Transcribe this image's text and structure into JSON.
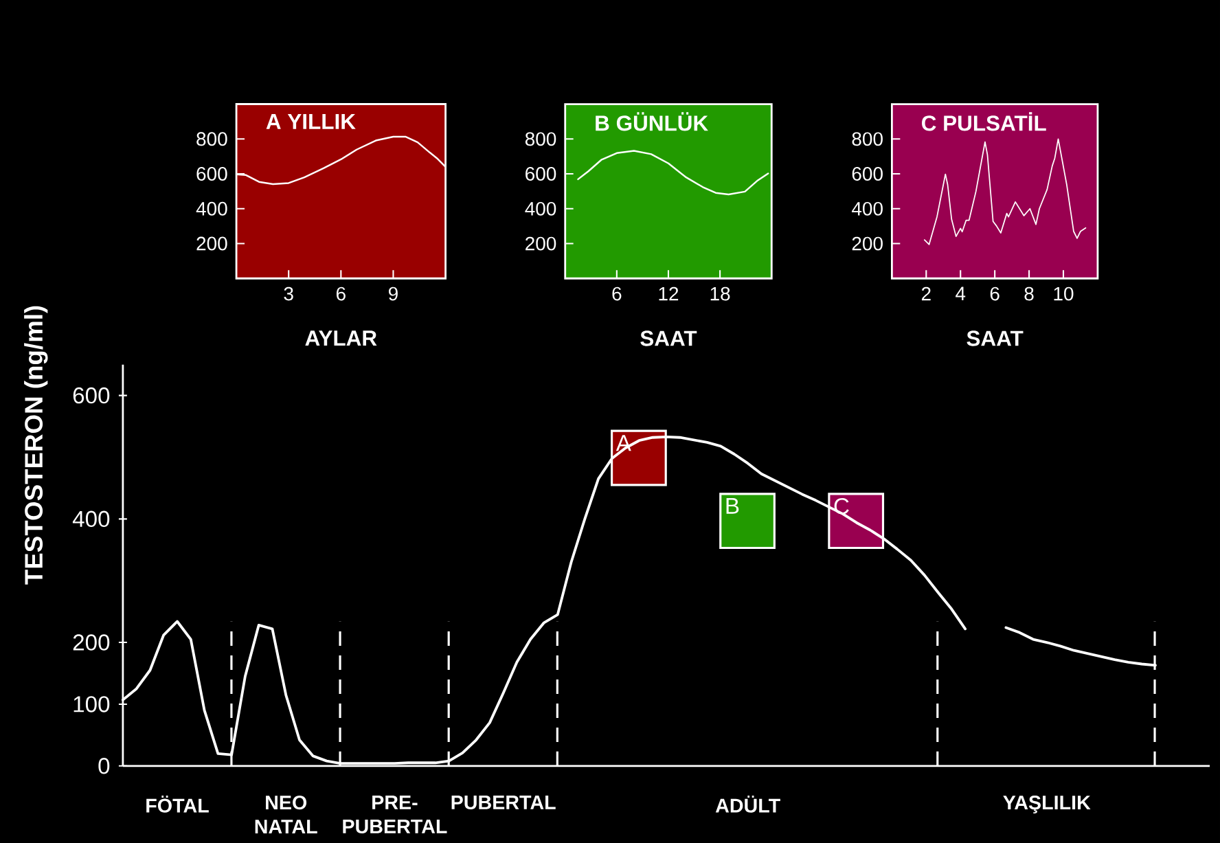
{
  "chart_data": [
    {
      "type": "line",
      "title": "A YILLIK",
      "xlabel": "AYLAR",
      "xlim": [
        0,
        12
      ],
      "ylim": [
        0,
        1000
      ],
      "xticks": [
        3,
        6,
        9
      ],
      "yticks": [
        200,
        400,
        600,
        800
      ],
      "bands": [
        {
          "axis": "x",
          "from": 0,
          "to": 12,
          "color": "#990000"
        }
      ],
      "series": [
        {
          "color": "#ffffff",
          "x": [
            0,
            0.55,
            1.3,
            2.1,
            3,
            3.9,
            5,
            6,
            6.9,
            8,
            9,
            9.7,
            10.4,
            11.1,
            11.5,
            12
          ],
          "values": [
            597,
            593,
            554,
            541,
            547,
            580,
            632,
            683,
            739,
            791,
            813,
            813,
            781,
            722,
            690,
            640
          ]
        }
      ]
    },
    {
      "type": "line",
      "title": "B GÜNLÜK",
      "xlabel": "SAAT",
      "xlim": [
        0,
        24
      ],
      "ylim": [
        0,
        1000
      ],
      "xticks": [
        6,
        12,
        18
      ],
      "yticks": [
        200,
        400,
        600,
        800
      ],
      "bands": [
        {
          "axis": "x",
          "from": 0,
          "to": 24,
          "color": "#229a00"
        }
      ],
      "series": [
        {
          "color": "#ffffff",
          "x": [
            1.5,
            2.7,
            4.2,
            6,
            8,
            10,
            12,
            14,
            16,
            17.5,
            19,
            20.9,
            22.4,
            23.6
          ],
          "values": [
            569,
            615,
            680,
            719,
            732,
            713,
            660,
            582,
            524,
            491,
            482,
            498,
            563,
            602
          ]
        }
      ]
    },
    {
      "type": "line",
      "title": "C PULSATİL",
      "xlabel": "SAAT",
      "xlim": [
        0,
        12
      ],
      "ylim": [
        0,
        1000
      ],
      "xticks": [
        2,
        4,
        6,
        8,
        10
      ],
      "yticks": [
        200,
        400,
        600,
        800
      ],
      "bands": [
        {
          "axis": "x",
          "from": 0,
          "to": 12,
          "color": "#990050"
        }
      ],
      "series": [
        {
          "color": "#ffffff",
          "x": [
            1.9,
            2.17,
            2.63,
            3.12,
            3.25,
            3.48,
            3.74,
            4,
            4.1,
            4.33,
            4.5,
            4.9,
            5.43,
            5.57,
            5.9,
            6.1,
            6.35,
            6.7,
            6.8,
            7.2,
            7.7,
            8.05,
            8.4,
            8.6,
            9.05,
            9.35,
            9.5,
            9.7,
            10.2,
            10.6,
            10.8,
            11,
            11.3
          ],
          "values": [
            221,
            195,
            354,
            598,
            538,
            340,
            241,
            287,
            268,
            334,
            334,
            499,
            783,
            710,
            327,
            301,
            261,
            373,
            353,
            439,
            360,
            400,
            310,
            400,
            510,
            645,
            690,
            800,
            535,
            270,
            230,
            270,
            290
          ]
        }
      ]
    },
    {
      "type": "line",
      "ylabel": "TESTOSTERON (ng/ml)",
      "ylim": [
        0,
        650
      ],
      "yticks": [
        0,
        100,
        200,
        400,
        600
      ],
      "categories": [
        null,
        null,
        null,
        null,
        "FÖTAL",
        null,
        null,
        null,
        null,
        null,
        null,
        null,
        "NEO NATAL",
        null,
        null,
        null,
        null,
        null,
        null,
        null,
        "PRE-PUBERTAL",
        null,
        null,
        null,
        null,
        null,
        null,
        null,
        "PUBERTAL",
        null,
        null,
        null,
        null,
        null,
        null,
        null,
        null,
        null,
        null,
        null,
        null,
        null,
        null,
        null,
        null,
        null,
        "ADÜLT",
        null,
        null,
        null,
        null,
        null,
        null,
        null,
        null,
        null,
        null,
        null,
        null,
        null,
        null,
        null,
        null,
        null,
        null,
        null,
        null,
        null,
        "YAŞLILIK",
        null,
        null,
        null,
        null,
        null,
        null,
        null,
        null
      ],
      "series": [
        {
          "color": "#ffffff",
          "values": [
            107,
            125,
            155,
            212,
            234,
            205,
            90,
            20,
            18,
            145,
            228,
            222,
            115,
            42,
            16,
            8,
            4,
            4,
            4,
            4,
            4,
            5,
            5,
            5,
            8,
            21,
            42,
            70,
            118,
            168,
            205,
            232,
            245,
            330,
            400,
            465,
            498,
            515,
            527,
            532,
            533,
            532,
            528,
            524,
            518,
            505,
            490,
            473,
            462,
            451,
            440,
            430,
            419,
            408,
            394,
            382,
            368,
            351,
            333,
            309,
            281,
            254,
            222,
            null,
            null,
            224,
            216,
            205,
            200,
            194,
            187,
            182,
            177,
            172,
            168,
            165,
            163
          ]
        }
      ],
      "annotations": [
        "A",
        "B",
        "C"
      ]
    }
  ]
}
